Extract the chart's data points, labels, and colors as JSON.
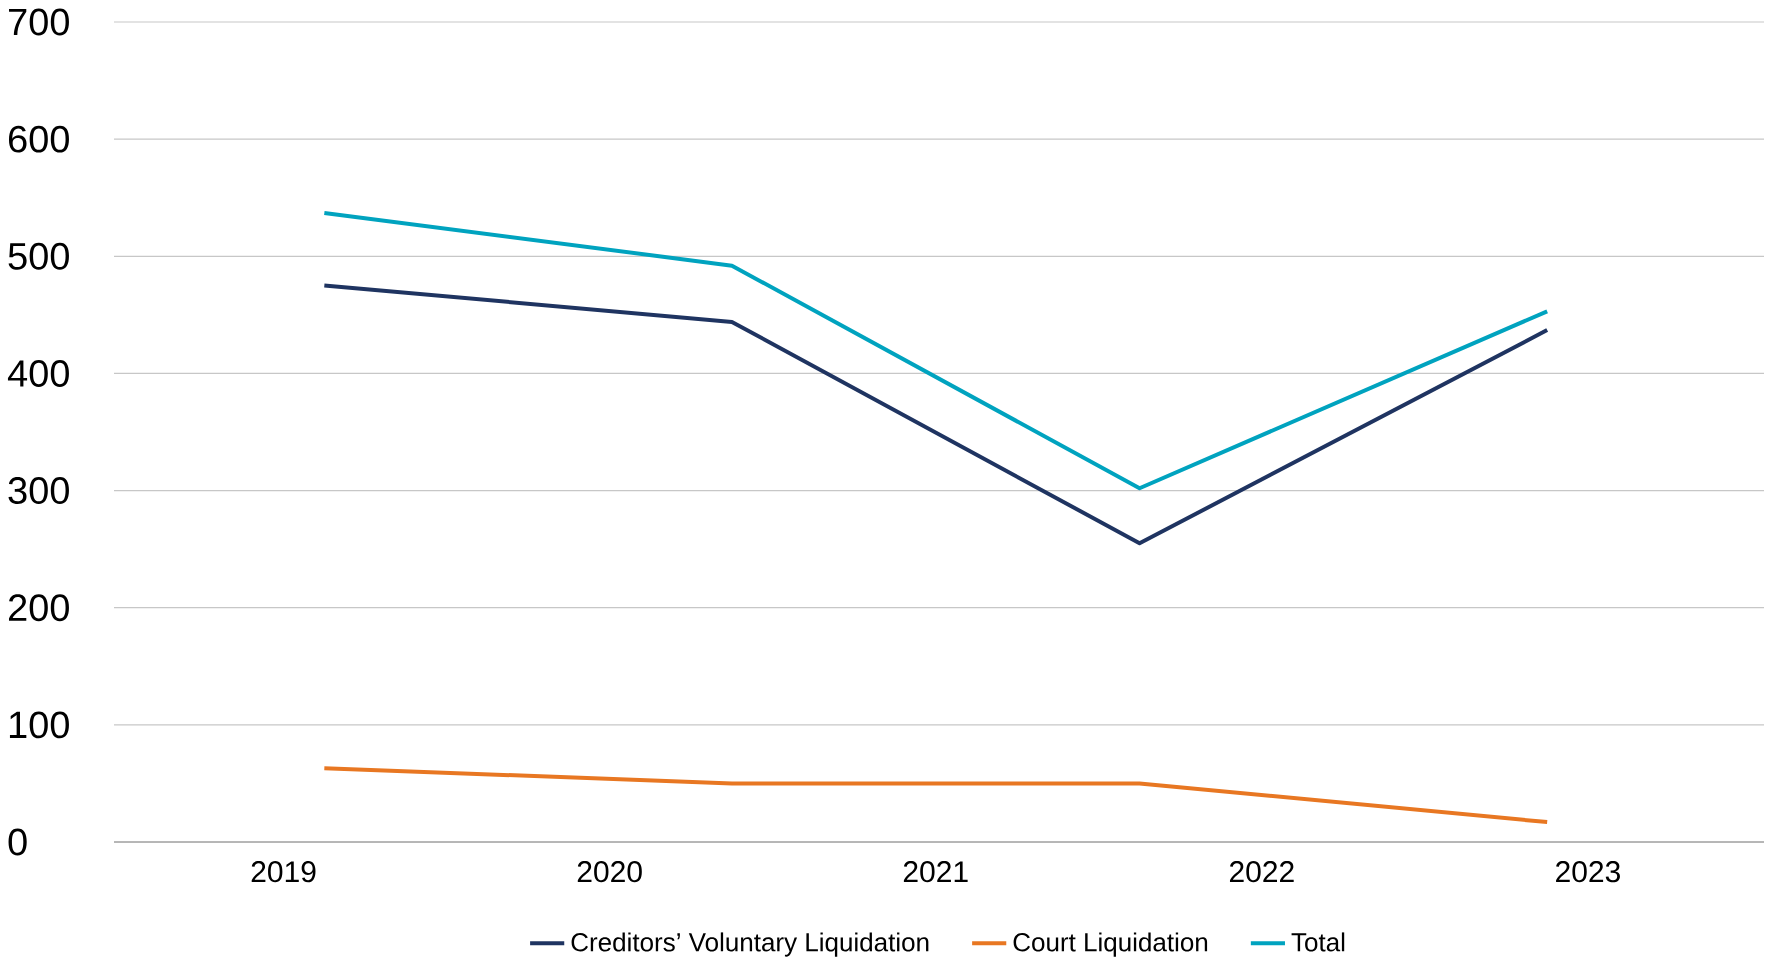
{
  "chart_data": {
    "type": "line",
    "x": [
      2019.125,
      2020.375,
      2021.625,
      2022.875
    ],
    "xlim": [
      2018.48,
      2023.54
    ],
    "xticks": [
      2019,
      2020,
      2021,
      2022,
      2023
    ],
    "ylim": [
      0,
      700
    ],
    "yticks": [
      0,
      100,
      200,
      300,
      400,
      500,
      600,
      700
    ],
    "grid": "y",
    "legend": "bottom",
    "series": [
      {
        "name": "Creditors’ Voluntary Liquidation",
        "color": "#1f3461",
        "values": [
          475,
          444,
          255,
          437
        ]
      },
      {
        "name": "Court Liquidation",
        "color": "#e87722",
        "values": [
          63,
          50,
          50,
          17
        ]
      },
      {
        "name": "Total",
        "color": "#00a3bf",
        "values": [
          537,
          492,
          302,
          453
        ]
      }
    ]
  }
}
